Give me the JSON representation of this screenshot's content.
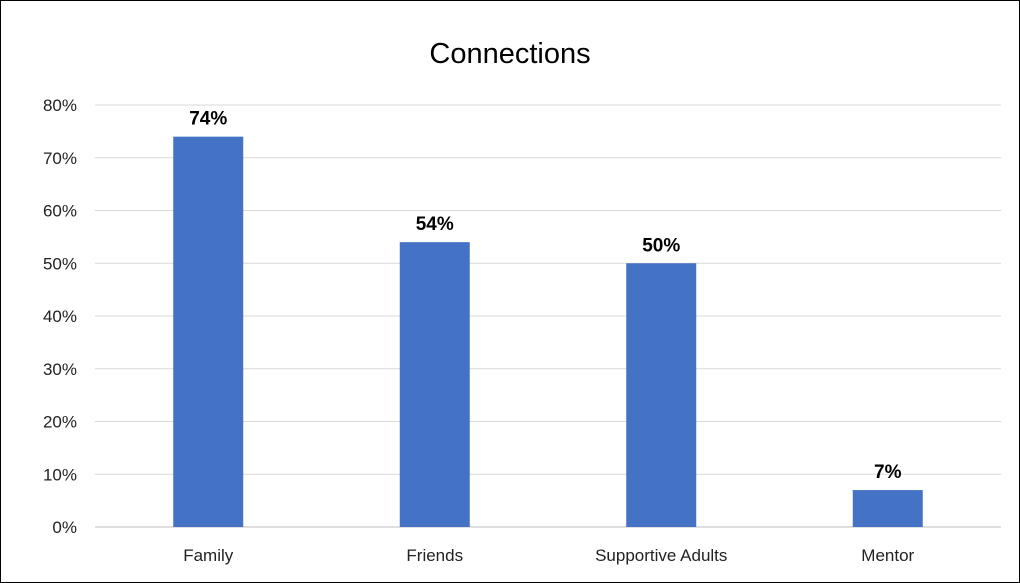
{
  "chart_data": {
    "type": "bar",
    "title": "Connections",
    "categories": [
      "Family",
      "Friends",
      "Supportive Adults",
      "Mentor"
    ],
    "values": [
      74,
      54,
      50,
      7
    ],
    "data_labels": [
      "74%",
      "54%",
      "50%",
      "7%"
    ],
    "ylim": [
      0,
      80
    ],
    "yticks": [
      0,
      10,
      20,
      30,
      40,
      50,
      60,
      70,
      80
    ],
    "ytick_labels": [
      "0%",
      "10%",
      "20%",
      "30%",
      "40%",
      "50%",
      "60%",
      "70%",
      "80%"
    ],
    "xlabel": "",
    "ylabel": "",
    "grid": true,
    "legend": "none",
    "bar_color": "#4472C4"
  }
}
